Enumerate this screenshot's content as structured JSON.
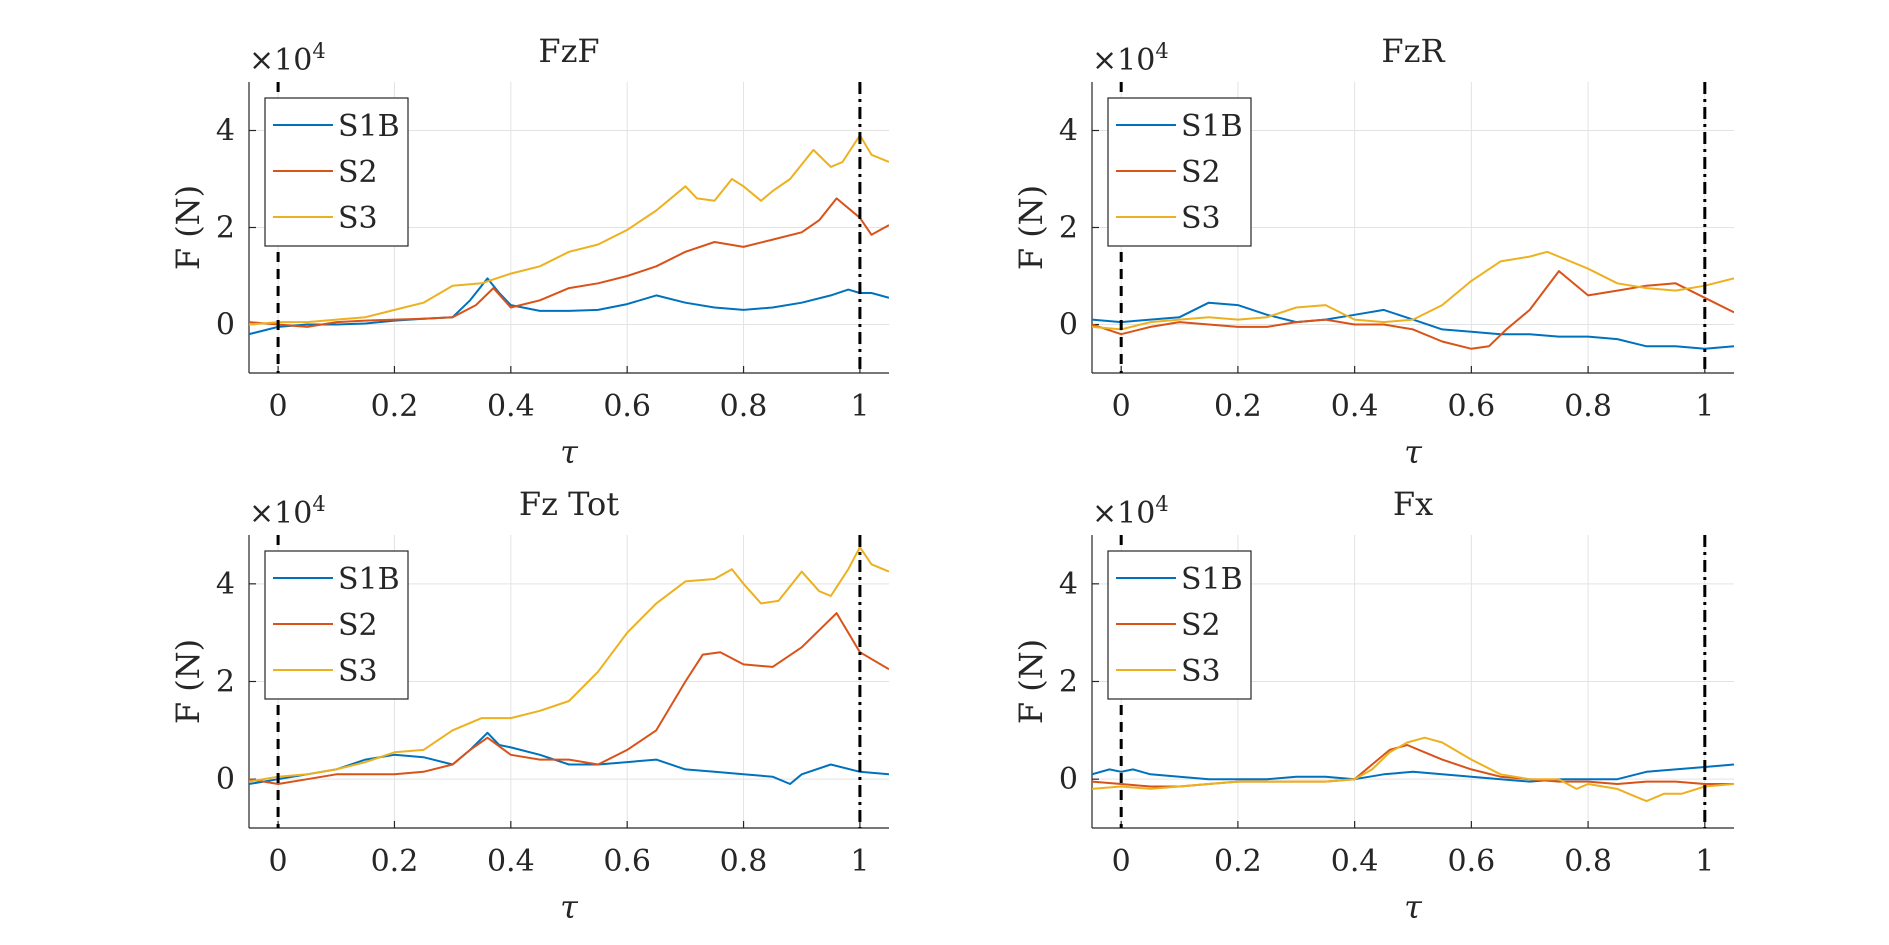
{
  "chart_data": [
    {
      "type": "line",
      "title": "FzF",
      "xlabel": "τ",
      "ylabel": "F (N)",
      "exponent_base": "×10",
      "exponent_power": "4",
      "xlim": [
        -0.05,
        1.05
      ],
      "ylim": [
        -1,
        5
      ],
      "xticks": [
        0,
        0.2,
        0.4,
        0.6,
        0.8,
        1
      ],
      "xtick_labels": [
        "0",
        "0.2",
        "0.4",
        "0.6",
        "0.8",
        "1"
      ],
      "yticks": [
        0,
        2,
        4
      ],
      "ytick_labels": [
        "0",
        "2",
        "4"
      ],
      "vlines": [
        0,
        1
      ],
      "legend_position": "top-left",
      "series": [
        {
          "name": "S1B",
          "color": "#0072BD",
          "x": [
            -0.05,
            0.0,
            0.05,
            0.1,
            0.15,
            0.2,
            0.25,
            0.3,
            0.33,
            0.36,
            0.38,
            0.4,
            0.45,
            0.5,
            0.55,
            0.6,
            0.65,
            0.7,
            0.75,
            0.8,
            0.85,
            0.9,
            0.95,
            0.98,
            1.0,
            1.02,
            1.05
          ],
          "y": [
            -0.2,
            -0.05,
            0.0,
            0.0,
            0.02,
            0.08,
            0.12,
            0.15,
            0.5,
            0.95,
            0.65,
            0.4,
            0.28,
            0.28,
            0.3,
            0.42,
            0.6,
            0.45,
            0.35,
            0.3,
            0.35,
            0.45,
            0.6,
            0.72,
            0.65,
            0.65,
            0.55
          ]
        },
        {
          "name": "S2",
          "color": "#D95319",
          "x": [
            -0.05,
            0.0,
            0.05,
            0.1,
            0.15,
            0.2,
            0.25,
            0.3,
            0.34,
            0.37,
            0.4,
            0.45,
            0.5,
            0.55,
            0.6,
            0.65,
            0.7,
            0.75,
            0.8,
            0.85,
            0.9,
            0.93,
            0.96,
            1.0,
            1.02,
            1.05
          ],
          "y": [
            0.05,
            0.0,
            -0.05,
            0.05,
            0.08,
            0.1,
            0.12,
            0.15,
            0.4,
            0.75,
            0.35,
            0.5,
            0.75,
            0.85,
            1.0,
            1.2,
            1.5,
            1.7,
            1.6,
            1.75,
            1.9,
            2.15,
            2.6,
            2.2,
            1.85,
            2.05
          ]
        },
        {
          "name": "S3",
          "color": "#EDB120",
          "x": [
            -0.05,
            0.0,
            0.05,
            0.1,
            0.15,
            0.2,
            0.25,
            0.3,
            0.35,
            0.4,
            0.45,
            0.5,
            0.55,
            0.6,
            0.65,
            0.7,
            0.72,
            0.75,
            0.78,
            0.8,
            0.83,
            0.85,
            0.88,
            0.92,
            0.95,
            0.97,
            1.0,
            1.02,
            1.05
          ],
          "y": [
            0.0,
            0.05,
            0.05,
            0.1,
            0.15,
            0.3,
            0.45,
            0.8,
            0.85,
            1.05,
            1.2,
            1.5,
            1.65,
            1.95,
            2.35,
            2.85,
            2.6,
            2.55,
            3.0,
            2.85,
            2.55,
            2.75,
            3.0,
            3.6,
            3.25,
            3.35,
            3.9,
            3.5,
            3.35
          ]
        }
      ]
    },
    {
      "type": "line",
      "title": "FzR",
      "xlabel": "τ",
      "ylabel": "F (N)",
      "exponent_base": "×10",
      "exponent_power": "4",
      "xlim": [
        -0.05,
        1.05
      ],
      "ylim": [
        -1,
        5
      ],
      "xticks": [
        0,
        0.2,
        0.4,
        0.6,
        0.8,
        1
      ],
      "xtick_labels": [
        "0",
        "0.2",
        "0.4",
        "0.6",
        "0.8",
        "1"
      ],
      "yticks": [
        0,
        2,
        4
      ],
      "ytick_labels": [
        "0",
        "2",
        "4"
      ],
      "vlines": [
        0,
        1
      ],
      "legend_position": "top-left",
      "series": [
        {
          "name": "S1B",
          "color": "#0072BD",
          "x": [
            -0.05,
            0.0,
            0.05,
            0.1,
            0.15,
            0.2,
            0.25,
            0.3,
            0.35,
            0.4,
            0.45,
            0.5,
            0.55,
            0.6,
            0.65,
            0.7,
            0.75,
            0.8,
            0.85,
            0.9,
            0.95,
            1.0,
            1.05
          ],
          "y": [
            0.1,
            0.05,
            0.1,
            0.15,
            0.45,
            0.4,
            0.2,
            0.05,
            0.1,
            0.2,
            0.3,
            0.1,
            -0.1,
            -0.15,
            -0.2,
            -0.2,
            -0.25,
            -0.25,
            -0.3,
            -0.45,
            -0.45,
            -0.5,
            -0.45
          ]
        },
        {
          "name": "S2",
          "color": "#D95319",
          "x": [
            -0.05,
            0.0,
            0.05,
            0.1,
            0.15,
            0.2,
            0.25,
            0.3,
            0.35,
            0.4,
            0.45,
            0.5,
            0.55,
            0.6,
            0.63,
            0.66,
            0.7,
            0.75,
            0.8,
            0.85,
            0.9,
            0.95,
            1.0,
            1.05
          ],
          "y": [
            0.0,
            -0.2,
            -0.05,
            0.05,
            0.0,
            -0.05,
            -0.05,
            0.05,
            0.1,
            0.0,
            0.0,
            -0.1,
            -0.35,
            -0.5,
            -0.45,
            -0.1,
            0.3,
            1.1,
            0.6,
            0.7,
            0.8,
            0.85,
            0.55,
            0.25
          ]
        },
        {
          "name": "S3",
          "color": "#EDB120",
          "x": [
            -0.05,
            0.0,
            0.05,
            0.1,
            0.15,
            0.2,
            0.25,
            0.3,
            0.35,
            0.4,
            0.45,
            0.5,
            0.55,
            0.6,
            0.65,
            0.7,
            0.73,
            0.76,
            0.8,
            0.85,
            0.9,
            0.95,
            1.0,
            1.05
          ],
          "y": [
            -0.05,
            -0.1,
            0.05,
            0.1,
            0.15,
            0.1,
            0.15,
            0.35,
            0.4,
            0.1,
            0.05,
            0.1,
            0.4,
            0.9,
            1.3,
            1.4,
            1.5,
            1.35,
            1.15,
            0.85,
            0.75,
            0.7,
            0.8,
            0.95
          ]
        }
      ]
    },
    {
      "type": "line",
      "title": "Fz Tot",
      "xlabel": "τ",
      "ylabel": "F (N)",
      "exponent_base": "×10",
      "exponent_power": "4",
      "xlim": [
        -0.05,
        1.05
      ],
      "ylim": [
        -1,
        5
      ],
      "xticks": [
        0,
        0.2,
        0.4,
        0.6,
        0.8,
        1
      ],
      "xtick_labels": [
        "0",
        "0.2",
        "0.4",
        "0.6",
        "0.8",
        "1"
      ],
      "yticks": [
        0,
        2,
        4
      ],
      "ytick_labels": [
        "0",
        "2",
        "4"
      ],
      "vlines": [
        0,
        1
      ],
      "legend_position": "top-left",
      "series": [
        {
          "name": "S1B",
          "color": "#0072BD",
          "x": [
            -0.05,
            0.0,
            0.05,
            0.1,
            0.15,
            0.2,
            0.25,
            0.3,
            0.33,
            0.36,
            0.38,
            0.4,
            0.45,
            0.5,
            0.55,
            0.6,
            0.65,
            0.7,
            0.75,
            0.8,
            0.85,
            0.88,
            0.9,
            0.95,
            1.0,
            1.05
          ],
          "y": [
            -0.1,
            0.0,
            0.1,
            0.2,
            0.4,
            0.5,
            0.45,
            0.3,
            0.6,
            0.95,
            0.7,
            0.65,
            0.5,
            0.3,
            0.3,
            0.35,
            0.4,
            0.2,
            0.15,
            0.1,
            0.05,
            -0.1,
            0.1,
            0.3,
            0.15,
            0.1
          ]
        },
        {
          "name": "S2",
          "color": "#D95319",
          "x": [
            -0.05,
            0.0,
            0.05,
            0.1,
            0.15,
            0.2,
            0.25,
            0.3,
            0.33,
            0.36,
            0.4,
            0.45,
            0.5,
            0.55,
            0.6,
            0.65,
            0.7,
            0.73,
            0.76,
            0.8,
            0.85,
            0.9,
            0.93,
            0.96,
            1.0,
            1.05
          ],
          "y": [
            0.0,
            -0.1,
            0.0,
            0.1,
            0.1,
            0.1,
            0.15,
            0.3,
            0.6,
            0.85,
            0.5,
            0.4,
            0.4,
            0.3,
            0.6,
            1.0,
            2.0,
            2.55,
            2.6,
            2.35,
            2.3,
            2.7,
            3.05,
            3.4,
            2.6,
            2.25
          ]
        },
        {
          "name": "S3",
          "color": "#EDB120",
          "x": [
            -0.05,
            0.0,
            0.05,
            0.1,
            0.15,
            0.2,
            0.25,
            0.3,
            0.35,
            0.4,
            0.45,
            0.5,
            0.55,
            0.6,
            0.65,
            0.7,
            0.75,
            0.78,
            0.8,
            0.83,
            0.86,
            0.9,
            0.93,
            0.95,
            0.98,
            1.0,
            1.02,
            1.05
          ],
          "y": [
            -0.05,
            0.05,
            0.1,
            0.2,
            0.35,
            0.55,
            0.6,
            1.0,
            1.25,
            1.25,
            1.4,
            1.6,
            2.2,
            3.0,
            3.6,
            4.05,
            4.1,
            4.3,
            4.0,
            3.6,
            3.65,
            4.25,
            3.85,
            3.75,
            4.3,
            4.75,
            4.4,
            4.25
          ]
        }
      ]
    },
    {
      "type": "line",
      "title": "Fx",
      "xlabel": "τ",
      "ylabel": "F (N)",
      "exponent_base": "×10",
      "exponent_power": "4",
      "xlim": [
        -0.05,
        1.05
      ],
      "ylim": [
        -1,
        5
      ],
      "xticks": [
        0,
        0.2,
        0.4,
        0.6,
        0.8,
        1
      ],
      "xtick_labels": [
        "0",
        "0.2",
        "0.4",
        "0.6",
        "0.8",
        "1"
      ],
      "yticks": [
        0,
        2,
        4
      ],
      "ytick_labels": [
        "0",
        "2",
        "4"
      ],
      "vlines": [
        0,
        1
      ],
      "legend_position": "top-left",
      "series": [
        {
          "name": "S1B",
          "color": "#0072BD",
          "x": [
            -0.05,
            -0.02,
            0.0,
            0.02,
            0.05,
            0.1,
            0.15,
            0.2,
            0.25,
            0.3,
            0.35,
            0.4,
            0.45,
            0.5,
            0.55,
            0.6,
            0.65,
            0.7,
            0.75,
            0.8,
            0.85,
            0.9,
            0.95,
            1.0,
            1.05
          ],
          "y": [
            0.1,
            0.2,
            0.15,
            0.2,
            0.1,
            0.05,
            0.0,
            0.0,
            0.0,
            0.05,
            0.05,
            0.0,
            0.1,
            0.15,
            0.1,
            0.05,
            0.0,
            -0.05,
            0.0,
            0.0,
            0.0,
            0.15,
            0.2,
            0.25,
            0.3
          ]
        },
        {
          "name": "S2",
          "color": "#D95319",
          "x": [
            -0.05,
            0.0,
            0.05,
            0.1,
            0.15,
            0.2,
            0.25,
            0.3,
            0.35,
            0.4,
            0.43,
            0.46,
            0.49,
            0.52,
            0.55,
            0.6,
            0.65,
            0.7,
            0.75,
            0.8,
            0.85,
            0.9,
            0.95,
            1.0,
            1.05
          ],
          "y": [
            -0.05,
            -0.1,
            -0.15,
            -0.15,
            -0.1,
            -0.05,
            -0.05,
            -0.05,
            -0.05,
            0.0,
            0.3,
            0.6,
            0.7,
            0.55,
            0.4,
            0.2,
            0.05,
            0.0,
            -0.05,
            -0.05,
            -0.1,
            -0.05,
            -0.05,
            -0.1,
            -0.1
          ]
        },
        {
          "name": "S3",
          "color": "#EDB120",
          "x": [
            -0.05,
            0.0,
            0.05,
            0.1,
            0.15,
            0.2,
            0.25,
            0.3,
            0.35,
            0.4,
            0.43,
            0.46,
            0.49,
            0.52,
            0.55,
            0.6,
            0.65,
            0.7,
            0.75,
            0.78,
            0.8,
            0.85,
            0.88,
            0.9,
            0.93,
            0.96,
            1.0,
            1.05
          ],
          "y": [
            -0.2,
            -0.15,
            -0.2,
            -0.15,
            -0.1,
            -0.05,
            -0.05,
            -0.05,
            -0.05,
            0.0,
            0.2,
            0.55,
            0.75,
            0.85,
            0.75,
            0.4,
            0.1,
            0.0,
            0.0,
            -0.2,
            -0.1,
            -0.2,
            -0.35,
            -0.45,
            -0.3,
            -0.3,
            -0.15,
            -0.1
          ]
        }
      ]
    }
  ]
}
